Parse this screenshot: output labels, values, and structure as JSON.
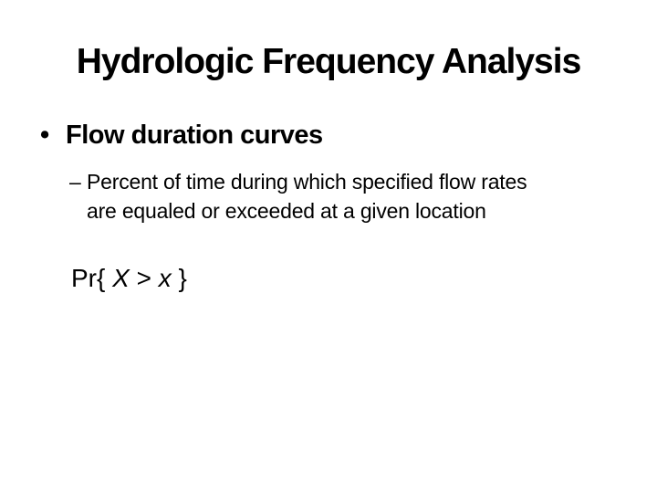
{
  "colors": {
    "background": "#ffffff",
    "text": "#000000"
  },
  "slide": {
    "title": "Hydrologic Frequency Analysis",
    "bullet": {
      "marker": "•",
      "text": "Flow duration curves"
    },
    "sub_bullet": {
      "marker": "–",
      "line1": "Percent of time during which specified flow rates",
      "line2": "are equaled or exceeded at a given location"
    },
    "formula": {
      "prefix": "Pr{ ",
      "var_upper": "X",
      "operator": " > ",
      "var_lower": "x",
      "suffix": " }"
    }
  }
}
